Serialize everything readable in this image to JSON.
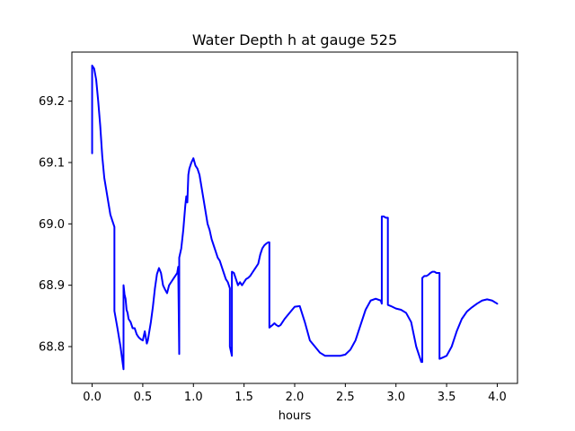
{
  "chart_data": {
    "type": "line",
    "title": "Water Depth h at gauge 525",
    "xlabel": "hours",
    "ylabel": "",
    "xlim": [
      -0.2,
      4.2
    ],
    "ylim": [
      68.74,
      69.28
    ],
    "xticks": [
      0.0,
      0.5,
      1.0,
      1.5,
      2.0,
      2.5,
      3.0,
      3.5,
      4.0
    ],
    "xtick_labels": [
      "0.0",
      "0.5",
      "1.0",
      "1.5",
      "2.0",
      "2.5",
      "3.0",
      "3.5",
      "4.0"
    ],
    "yticks": [
      68.8,
      68.9,
      69.0,
      69.1,
      69.2
    ],
    "ytick_labels": [
      "68.8",
      "68.9",
      "69.0",
      "69.1",
      "69.2"
    ],
    "grid": false,
    "series": [
      {
        "color": "#0000ff",
        "x": [
          0.0,
          0.0,
          0.02,
          0.04,
          0.06,
          0.08,
          0.1,
          0.12,
          0.14,
          0.16,
          0.18,
          0.2,
          0.21,
          0.22,
          0.22,
          0.25,
          0.28,
          0.31,
          0.31,
          0.32,
          0.33,
          0.34,
          0.35,
          0.36,
          0.38,
          0.4,
          0.42,
          0.44,
          0.46,
          0.48,
          0.5,
          0.52,
          0.54,
          0.55,
          0.56,
          0.58,
          0.6,
          0.62,
          0.64,
          0.66,
          0.68,
          0.7,
          0.72,
          0.74,
          0.76,
          0.78,
          0.8,
          0.82,
          0.84,
          0.85,
          0.86,
          0.86,
          0.88,
          0.9,
          0.92,
          0.93,
          0.94,
          0.95,
          0.96,
          0.98,
          1.0,
          1.02,
          1.04,
          1.06,
          1.08,
          1.1,
          1.12,
          1.14,
          1.16,
          1.18,
          1.2,
          1.22,
          1.24,
          1.26,
          1.28,
          1.3,
          1.32,
          1.34,
          1.35,
          1.36,
          1.36,
          1.38,
          1.38,
          1.4,
          1.42,
          1.44,
          1.46,
          1.48,
          1.5,
          1.52,
          1.54,
          1.56,
          1.58,
          1.6,
          1.62,
          1.64,
          1.66,
          1.68,
          1.7,
          1.72,
          1.74,
          1.75,
          1.75,
          1.78,
          1.8,
          1.82,
          1.84,
          1.86,
          1.88,
          1.9,
          1.95,
          2.0,
          2.05,
          2.1,
          2.15,
          2.2,
          2.25,
          2.3,
          2.35,
          2.4,
          2.45,
          2.5,
          2.55,
          2.6,
          2.65,
          2.7,
          2.75,
          2.8,
          2.85,
          2.86,
          2.86,
          2.88,
          2.9,
          2.92,
          2.92,
          2.95,
          3.0,
          3.05,
          3.1,
          3.15,
          3.2,
          3.25,
          3.26,
          3.26,
          3.28,
          3.3,
          3.32,
          3.34,
          3.36,
          3.38,
          3.4,
          3.42,
          3.43,
          3.43,
          3.46,
          3.5,
          3.55,
          3.6,
          3.65,
          3.7,
          3.75,
          3.8,
          3.85,
          3.9,
          3.95,
          4.0
        ],
        "y": [
          69.115,
          69.258,
          69.253,
          69.235,
          69.2,
          69.16,
          69.11,
          69.075,
          69.055,
          69.035,
          69.015,
          69.005,
          69.0,
          68.995,
          68.858,
          68.83,
          68.8,
          68.763,
          68.9,
          68.885,
          68.878,
          68.86,
          68.855,
          68.845,
          68.84,
          68.83,
          68.83,
          68.82,
          68.815,
          68.812,
          68.81,
          68.825,
          68.805,
          68.81,
          68.82,
          68.84,
          68.865,
          68.895,
          68.918,
          68.928,
          68.92,
          68.9,
          68.893,
          68.887,
          68.9,
          68.905,
          68.91,
          68.915,
          68.92,
          68.93,
          68.788,
          68.945,
          68.96,
          68.99,
          69.03,
          69.045,
          69.035,
          69.08,
          69.09,
          69.1,
          69.107,
          69.095,
          69.09,
          69.08,
          69.06,
          69.04,
          69.02,
          69.0,
          68.99,
          68.975,
          68.965,
          68.955,
          68.945,
          68.94,
          68.93,
          68.92,
          68.91,
          68.905,
          68.9,
          68.895,
          68.8,
          68.785,
          68.922,
          68.92,
          68.91,
          68.9,
          68.905,
          68.9,
          68.905,
          68.91,
          68.912,
          68.915,
          68.92,
          68.925,
          68.93,
          68.935,
          68.95,
          68.96,
          68.965,
          68.968,
          68.97,
          68.97,
          68.831,
          68.835,
          68.838,
          68.835,
          68.833,
          68.835,
          68.84,
          68.845,
          68.855,
          68.865,
          68.866,
          68.84,
          68.81,
          68.8,
          68.79,
          68.785,
          68.785,
          68.785,
          68.785,
          68.787,
          68.795,
          68.81,
          68.835,
          68.86,
          68.875,
          68.878,
          68.875,
          68.87,
          69.012,
          69.012,
          69.01,
          69.01,
          68.868,
          68.866,
          68.862,
          68.86,
          68.855,
          68.84,
          68.8,
          68.775,
          68.775,
          68.912,
          68.915,
          68.915,
          68.917,
          68.92,
          68.922,
          68.922,
          68.92,
          68.92,
          68.92,
          68.78,
          68.782,
          68.785,
          68.8,
          68.825,
          68.845,
          68.857,
          68.864,
          68.87,
          68.875,
          68.877,
          68.875,
          68.87
        ]
      }
    ]
  }
}
